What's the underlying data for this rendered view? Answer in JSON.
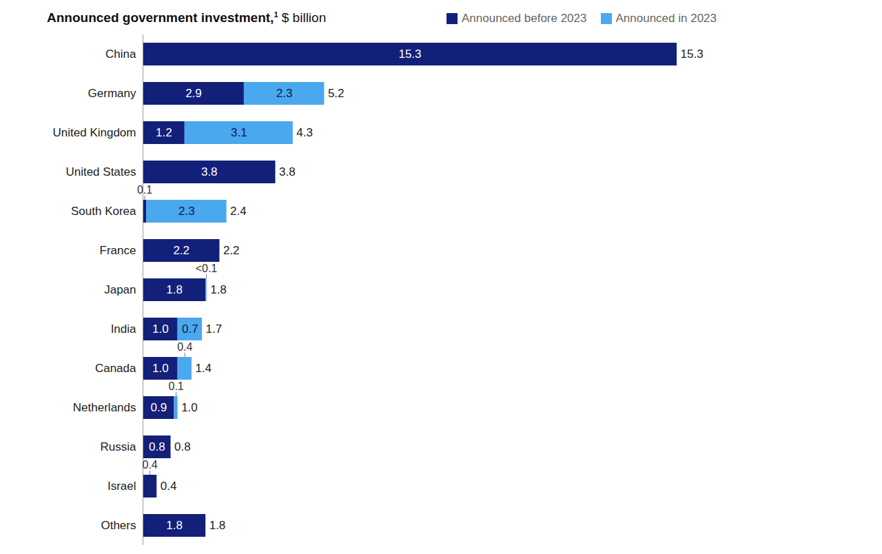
{
  "chart_data": {
    "type": "bar",
    "orientation": "horizontal",
    "stacked": true,
    "data_labels": true,
    "tick_labels": "y",
    "legend": "top",
    "title": "Announced government investment,",
    "title_footnote": "1",
    "subtitle": "$ billion",
    "categories": [
      "China",
      "Germany",
      "United Kingdom",
      "United States",
      "South Korea",
      "France",
      "Japan",
      "India",
      "Canada",
      "Netherlands",
      "Russia",
      "Israel",
      "Others"
    ],
    "series": [
      {
        "name": "Announced before 2023",
        "color": "#13207a",
        "values": [
          15.3,
          2.9,
          1.2,
          3.8,
          0.1,
          2.2,
          1.8,
          1.0,
          1.0,
          0.9,
          0.8,
          0.4,
          1.8
        ]
      },
      {
        "name": "Announced in 2023",
        "color": "#4aa8ee",
        "values": [
          null,
          2.3,
          3.1,
          null,
          2.3,
          null,
          0.03,
          0.7,
          0.4,
          0.1,
          null,
          null,
          null
        ],
        "value_labels": [
          null,
          null,
          null,
          null,
          null,
          null,
          "<0.1",
          null,
          null,
          null,
          null,
          null,
          null
        ]
      }
    ],
    "totals": [
      15.3,
      5.2,
      4.3,
      3.8,
      2.4,
      2.2,
      1.8,
      1.7,
      1.4,
      1.0,
      0.8,
      0.4,
      1.8
    ],
    "xlim": [
      0,
      15.3
    ]
  }
}
